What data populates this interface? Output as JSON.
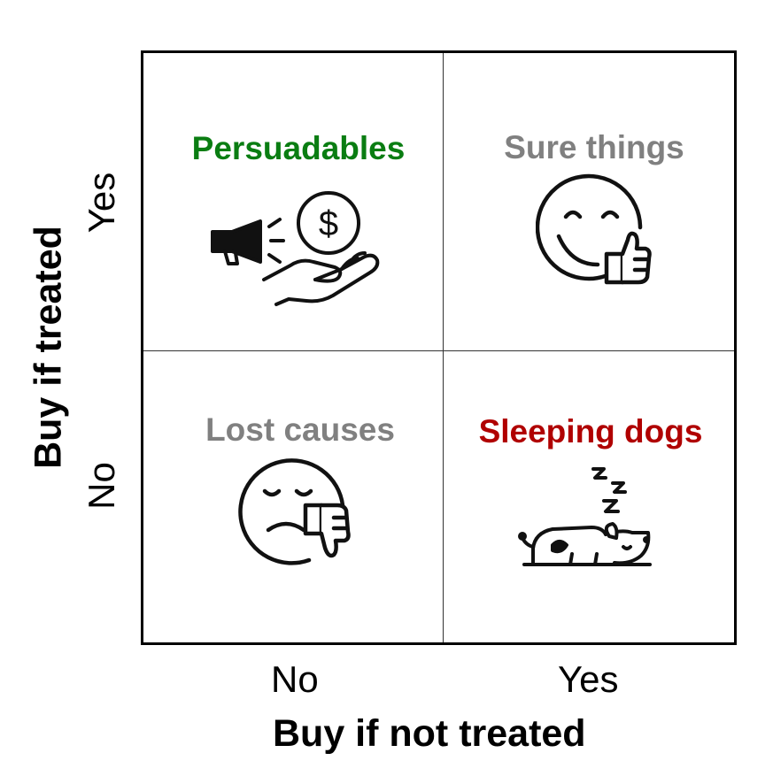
{
  "x_axis": {
    "title": "Buy if not treated",
    "ticks": [
      "No",
      "Yes"
    ]
  },
  "y_axis": {
    "title": "Buy if treated",
    "ticks": [
      "Yes",
      "No"
    ]
  },
  "quadrants": [
    {
      "label": "Persuadables",
      "color": "#0a7d12",
      "icon": "megaphone-money-hand-icon"
    },
    {
      "label": "Sure things",
      "color": "#808080",
      "icon": "smiley-thumbs-up-icon"
    },
    {
      "label": "Lost causes",
      "color": "#808080",
      "icon": "sad-face-thumbs-down-icon"
    },
    {
      "label": "Sleeping dogs",
      "color": "#b00000",
      "icon": "sleeping-dog-icon"
    }
  ]
}
